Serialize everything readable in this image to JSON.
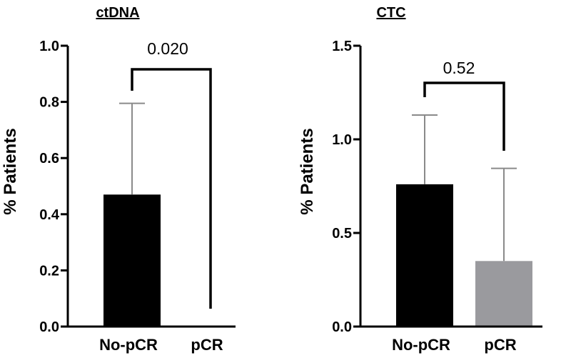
{
  "chart_data": [
    {
      "type": "bar",
      "title": "ctDNA",
      "ylabel": "% Patients",
      "xlabel": "",
      "categories": [
        "No-pCR",
        "pCR"
      ],
      "values": [
        0.47,
        0.0
      ],
      "error_upper": [
        0.795,
        0.0
      ],
      "ylim": [
        0,
        1.0
      ],
      "yticks": [
        0.0,
        0.2,
        0.4,
        0.6,
        0.8,
        1.0
      ],
      "ytick_labels": [
        "0.0",
        "0.2",
        "0.4",
        "0.6",
        "0.8",
        "1.0"
      ],
      "bar_colors": [
        "#000000",
        "#9a9a9e"
      ],
      "comparison": {
        "p_value": "0.020"
      },
      "grid": false
    },
    {
      "type": "bar",
      "title": "CTC",
      "ylabel": "% Patients",
      "xlabel": "",
      "categories": [
        "No-pCR",
        "pCR"
      ],
      "values": [
        0.76,
        0.35
      ],
      "error_upper": [
        1.13,
        0.845
      ],
      "ylim": [
        0,
        1.5
      ],
      "yticks": [
        0.0,
        0.5,
        1.0,
        1.5
      ],
      "ytick_labels": [
        "0.0",
        "0.5",
        "1.0",
        "1.5"
      ],
      "bar_colors": [
        "#000000",
        "#9a9a9e"
      ],
      "comparison": {
        "p_value": "0.52"
      },
      "grid": false
    }
  ]
}
